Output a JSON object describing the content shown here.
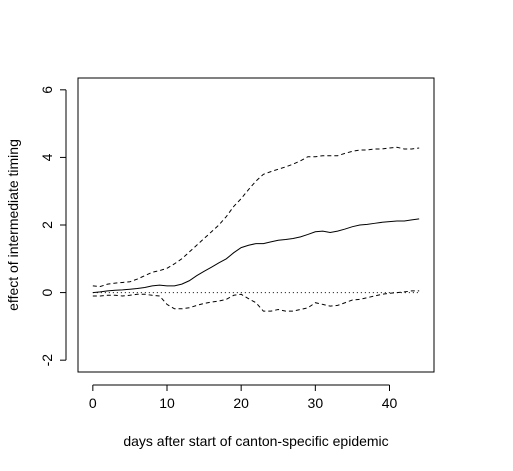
{
  "chart_data": {
    "type": "line",
    "title": "",
    "xlabel": "days after start of canton-specific epidemic",
    "ylabel": "effect of intermediate timing",
    "xlim": [
      -2,
      46
    ],
    "ylim": [
      -2.35,
      6.35
    ],
    "xticks": [
      0,
      10,
      20,
      30,
      40
    ],
    "yticks": [
      -2,
      0,
      2,
      4,
      6
    ],
    "grid": false,
    "legend": "none",
    "reference_line": {
      "y": 0,
      "style": "dotted"
    },
    "series": [
      {
        "style": "solid",
        "x": [
          0,
          1,
          2,
          3,
          4,
          5,
          6,
          7,
          8,
          9,
          10,
          11,
          12,
          13,
          14,
          15,
          16,
          17,
          18,
          19,
          20,
          21,
          22,
          23,
          24,
          25,
          26,
          27,
          28,
          29,
          30,
          31,
          32,
          33,
          34,
          35,
          36,
          37,
          38,
          39,
          40,
          41,
          42,
          43,
          44
        ],
        "values": [
          0.0,
          0.02,
          0.05,
          0.07,
          0.08,
          0.1,
          0.12,
          0.15,
          0.2,
          0.22,
          0.2,
          0.2,
          0.25,
          0.35,
          0.5,
          0.63,
          0.75,
          0.88,
          1.0,
          1.18,
          1.33,
          1.4,
          1.45,
          1.45,
          1.5,
          1.55,
          1.57,
          1.6,
          1.65,
          1.72,
          1.8,
          1.82,
          1.78,
          1.82,
          1.88,
          1.95,
          2.0,
          2.02,
          2.05,
          2.08,
          2.1,
          2.12,
          2.12,
          2.15,
          2.18
        ]
      },
      {
        "style": "dashed",
        "x": [
          0,
          1,
          2,
          3,
          4,
          5,
          6,
          7,
          8,
          9,
          10,
          11,
          12,
          13,
          14,
          15,
          16,
          17,
          18,
          19,
          20,
          21,
          22,
          23,
          24,
          25,
          26,
          27,
          28,
          29,
          30,
          31,
          32,
          33,
          34,
          35,
          36,
          37,
          38,
          39,
          40,
          41,
          42,
          43,
          44
        ],
        "values": [
          0.2,
          0.18,
          0.25,
          0.28,
          0.3,
          0.32,
          0.4,
          0.5,
          0.6,
          0.65,
          0.72,
          0.85,
          1.0,
          1.2,
          1.4,
          1.6,
          1.8,
          2.0,
          2.25,
          2.55,
          2.78,
          3.05,
          3.3,
          3.5,
          3.58,
          3.65,
          3.72,
          3.8,
          3.9,
          4.02,
          4.02,
          4.05,
          4.05,
          4.05,
          4.12,
          4.18,
          4.22,
          4.22,
          4.25,
          4.25,
          4.28,
          4.3,
          4.25,
          4.25,
          4.28
        ]
      },
      {
        "style": "dashed",
        "x": [
          0,
          1,
          2,
          3,
          4,
          5,
          6,
          7,
          8,
          9,
          10,
          11,
          12,
          13,
          14,
          15,
          16,
          17,
          18,
          19,
          20,
          21,
          22,
          23,
          24,
          25,
          26,
          27,
          28,
          29,
          30,
          31,
          32,
          33,
          34,
          35,
          36,
          37,
          38,
          39,
          40,
          41,
          42,
          43,
          44
        ],
        "values": [
          -0.1,
          -0.1,
          -0.08,
          -0.08,
          -0.1,
          -0.08,
          -0.05,
          -0.05,
          -0.08,
          -0.1,
          -0.35,
          -0.48,
          -0.48,
          -0.45,
          -0.38,
          -0.32,
          -0.28,
          -0.25,
          -0.2,
          -0.08,
          -0.05,
          -0.18,
          -0.3,
          -0.55,
          -0.55,
          -0.5,
          -0.55,
          -0.55,
          -0.5,
          -0.45,
          -0.3,
          -0.35,
          -0.4,
          -0.38,
          -0.3,
          -0.22,
          -0.2,
          -0.15,
          -0.1,
          -0.05,
          -0.02,
          0.0,
          0.02,
          0.05,
          0.05
        ]
      }
    ]
  }
}
